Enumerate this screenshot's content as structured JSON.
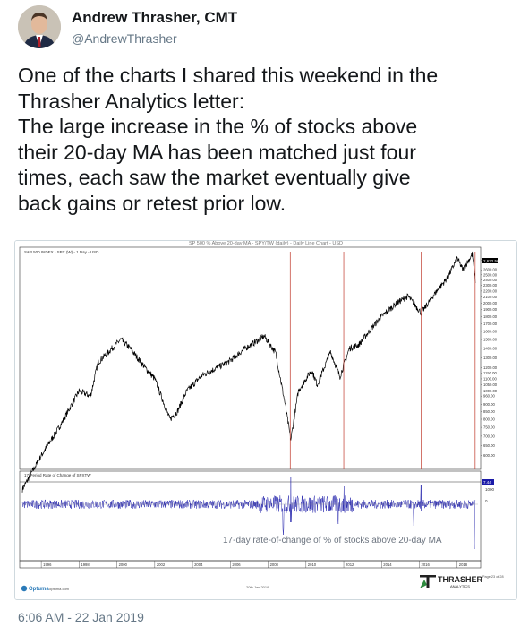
{
  "tweet": {
    "author_name": "Andrew Thrasher, CMT",
    "author_handle": "@AndrewThrasher",
    "text_lines": [
      "One of the charts I shared this weekend in the",
      "Thrasher Analytics letter:",
      "The large increase in the % of stocks above",
      "their 20-day MA has been matched just four",
      "times, each saw the market eventually give",
      "back gains or retest prior low."
    ],
    "timestamp": "6:06 AM - 22 Jan 2019"
  },
  "chart": {
    "top_title": "SP 500 % Above 20-day MA - SPY/TW (daily) - Daily Line Chart - USD",
    "upper_label": "S&P 500 INDEX - SPX (W) - 1 Day - USD",
    "lower_label": "17-Period Rate of Change of SPXTW",
    "annotation": "17-day rate-of-change of % of stocks above 20-day MA",
    "price_badge": "2,632.56",
    "lower_badge": "7.44",
    "lower_axis_label": "1000",
    "lower_zero_label": "0",
    "footer_brand": "Optuma",
    "footer_site": "optuma.com",
    "footer_date": "20th Jan 2019",
    "footer_page": "Page 23 of 28",
    "logo_text": "THRASHER",
    "logo_sub": "ANALYTICS",
    "x_ticks": [
      "1996",
      "1998",
      "2000",
      "2002",
      "2004",
      "2006",
      "2008",
      "2010",
      "2012",
      "2014",
      "2016",
      "2018"
    ],
    "y_ticks": [
      "2800.00",
      "2600.00",
      "2500.00",
      "2400.00",
      "2300.00",
      "2200.00",
      "2100.00",
      "2000.00",
      "1900.00",
      "1800.00",
      "1700.00",
      "1600.00",
      "1500.00",
      "1400.00",
      "1300.00",
      "1200.00",
      "1150.00",
      "1100.00",
      "1050.00",
      "1000.00",
      "960.00",
      "900.00",
      "850.00",
      "800.00",
      "750.00",
      "700.00",
      "650.00",
      "600.00"
    ],
    "vertical_marker_dates": [
      "Mar 2009",
      "Jan 2012",
      "Feb 2016",
      "Dec 2018"
    ],
    "colors": {
      "price": "#000000",
      "roc": "#1a1aa8",
      "markers": "#c0392b"
    }
  },
  "chart_data": {
    "type": "line",
    "series": [
      {
        "name": "S&P 500 INDEX - SPX (W)",
        "x": [
          1995,
          1996,
          1997,
          1998,
          1998.6,
          1999,
          2000.2,
          2000.7,
          2001.5,
          2002,
          2002.8,
          2003.2,
          2003.7,
          2004.5,
          2005.3,
          2006,
          2006.8,
          2007.8,
          2008.4,
          2008.9,
          2009.2,
          2009.6,
          2010.3,
          2010.6,
          2011.3,
          2011.8,
          2012.3,
          2012.8,
          2013.5,
          2014,
          2014.8,
          2015.4,
          2016.1,
          2016.8,
          2017.5,
          2018,
          2018.3,
          2018.8,
          2018.97
        ],
        "values": [
          460,
          600,
          760,
          1000,
          960,
          1250,
          1500,
          1400,
          1200,
          1100,
          800,
          850,
          1000,
          1130,
          1200,
          1270,
          1400,
          1540,
          1350,
          900,
          680,
          1000,
          1180,
          1050,
          1360,
          1120,
          1400,
          1440,
          1650,
          1800,
          2000,
          2110,
          1850,
          2150,
          2450,
          2850,
          2600,
          2940,
          2350
        ]
      }
    ],
    "ylim": [
      550,
      3000
    ],
    "log_scale": true
  }
}
